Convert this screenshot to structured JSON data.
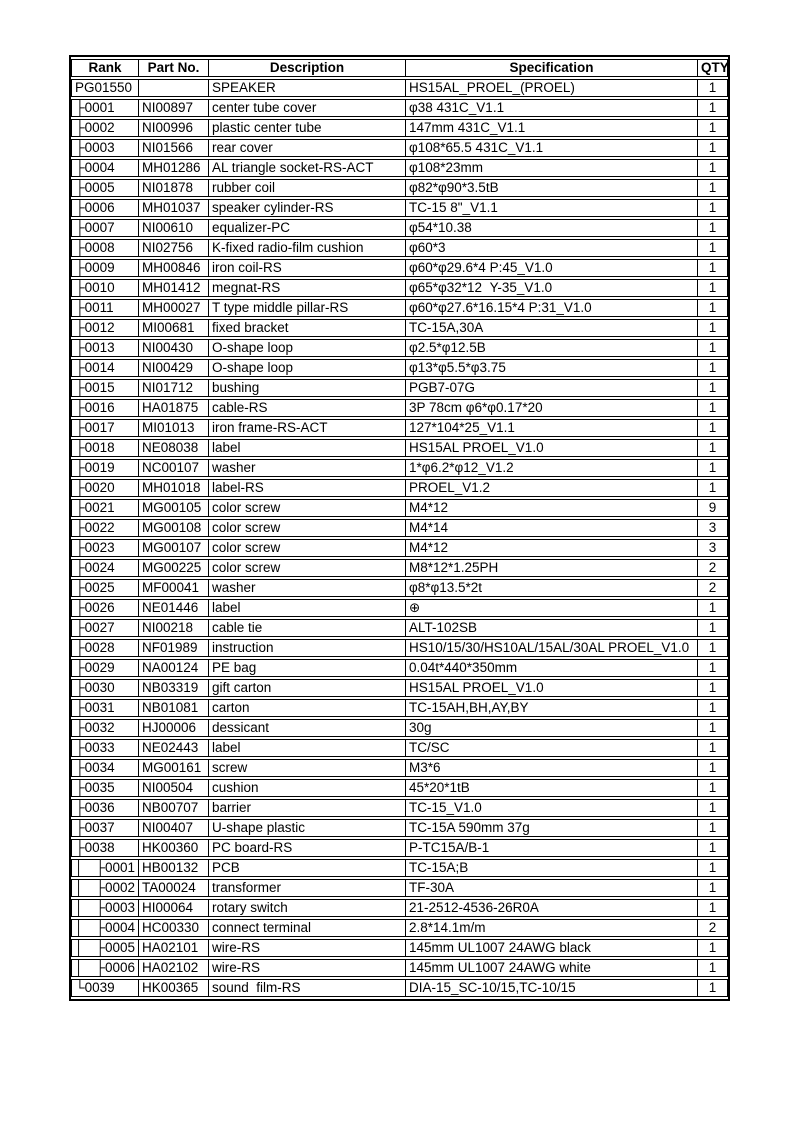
{
  "colors": {
    "background": "#ffffff",
    "border": "#000000",
    "text": "#000000"
  },
  "table": {
    "headers": [
      "Rank",
      "Part No.",
      "Description",
      "Specification",
      "QTY"
    ],
    "rows": [
      {
        "prefix": "",
        "rank": "PG01550",
        "part": "",
        "desc": "SPEAKER",
        "spec": "HS15AL_PROEL_(PROEL)",
        "qty": "1"
      },
      {
        "prefix": "",
        "rank": "├0001",
        "part": "NI00897",
        "desc": "center tube cover",
        "spec": "φ38 431C_V1.1",
        "qty": "1"
      },
      {
        "prefix": "",
        "rank": "├0002",
        "part": "NI00996",
        "desc": "plastic center tube",
        "spec": "147mm 431C_V1.1",
        "qty": "1"
      },
      {
        "prefix": "",
        "rank": "├0003",
        "part": "NI01566",
        "desc": "rear cover",
        "spec": "φ108*65.5 431C_V1.1",
        "qty": "1"
      },
      {
        "prefix": "",
        "rank": "├0004",
        "part": "MH01286",
        "desc": "AL triangle socket-RS-ACT",
        "spec": "φ108*23mm",
        "qty": "1"
      },
      {
        "prefix": "",
        "rank": "├0005",
        "part": "NI01878",
        "desc": "rubber coil",
        "spec": "φ82*φ90*3.5tB",
        "qty": "1"
      },
      {
        "prefix": "",
        "rank": "├0006",
        "part": "MH01037",
        "desc": "speaker cylinder-RS",
        "spec": "TC-15 8\"_V1.1",
        "qty": "1"
      },
      {
        "prefix": "",
        "rank": "├0007",
        "part": "NI00610",
        "desc": "equalizer-PC",
        "spec": "φ54*10.38",
        "qty": "1"
      },
      {
        "prefix": "",
        "rank": "├0008",
        "part": "NI02756",
        "desc": "K-fixed radio-film cushion",
        "spec": "φ60*3",
        "qty": "1"
      },
      {
        "prefix": "",
        "rank": "├0009",
        "part": "MH00846",
        "desc": "iron coil-RS",
        "spec": "φ60*φ29.6*4 P:45_V1.0",
        "qty": "1"
      },
      {
        "prefix": "",
        "rank": "├0010",
        "part": "MH01412",
        "desc": "megnat-RS",
        "spec": "φ65*φ32*12  Y-35_V1.0",
        "qty": "1"
      },
      {
        "prefix": "",
        "rank": "├0011",
        "part": "MH00027",
        "desc": "T type middle pillar-RS",
        "spec": "φ60*φ27.6*16.15*4 P:31_V1.0",
        "qty": "1"
      },
      {
        "prefix": "",
        "rank": "├0012",
        "part": "MI00681",
        "desc": "fixed bracket",
        "spec": "TC-15A,30A",
        "qty": "1"
      },
      {
        "prefix": "",
        "rank": "├0013",
        "part": "NI00430",
        "desc": "O-shape loop",
        "spec": "φ2.5*φ12.5B",
        "qty": "1"
      },
      {
        "prefix": "",
        "rank": "├0014",
        "part": "NI00429",
        "desc": "O-shape loop",
        "spec": "φ13*φ5.5*φ3.75",
        "qty": "1"
      },
      {
        "prefix": "",
        "rank": "├0015",
        "part": "NI01712",
        "desc": "bushing",
        "spec": "PGB7-07G",
        "qty": "1"
      },
      {
        "prefix": "",
        "rank": "├0016",
        "part": "HA01875",
        "desc": "cable-RS",
        "spec": "3P 78cm φ6*φ0.17*20",
        "qty": "1"
      },
      {
        "prefix": "",
        "rank": "├0017",
        "part": "MI01013",
        "desc": "iron frame-RS-ACT",
        "spec": "127*104*25_V1.1",
        "qty": "1"
      },
      {
        "prefix": "",
        "rank": "├0018",
        "part": "NE08038",
        "desc": "label",
        "spec": "HS15AL PROEL_V1.0",
        "qty": "1"
      },
      {
        "prefix": "",
        "rank": "├0019",
        "part": "NC00107",
        "desc": "washer",
        "spec": "1*φ6.2*φ12_V1.2",
        "qty": "1"
      },
      {
        "prefix": "",
        "rank": "├0020",
        "part": "MH01018",
        "desc": "label-RS",
        "spec": "PROEL_V1.2",
        "qty": "1"
      },
      {
        "prefix": "",
        "rank": "├0021",
        "part": "MG00105",
        "desc": "color screw",
        "spec": "M4*12",
        "qty": "9"
      },
      {
        "prefix": "",
        "rank": "├0022",
        "part": "MG00108",
        "desc": "color screw",
        "spec": "M4*14",
        "qty": "3"
      },
      {
        "prefix": "",
        "rank": "├0023",
        "part": "MG00107",
        "desc": "color screw",
        "spec": "M4*12",
        "qty": "3"
      },
      {
        "prefix": "",
        "rank": "├0024",
        "part": "MG00225",
        "desc": "color screw",
        "spec": "M8*12*1.25PH",
        "qty": "2"
      },
      {
        "prefix": "",
        "rank": "├0025",
        "part": "MF00041",
        "desc": "washer",
        "spec": "φ8*φ13.5*2t",
        "qty": "2"
      },
      {
        "prefix": "",
        "rank": "├0026",
        "part": "NE01446",
        "desc": "label",
        "spec": "⊕",
        "qty": "1"
      },
      {
        "prefix": "",
        "rank": "├0027",
        "part": "NI00218",
        "desc": "cable tie",
        "spec": "ALT-102SB",
        "qty": "1"
      },
      {
        "prefix": "",
        "rank": "├0028",
        "part": "NF01989",
        "desc": "instruction",
        "spec": "HS10/15/30/HS10AL/15AL/30AL PROEL_V1.0",
        "qty": "1"
      },
      {
        "prefix": "",
        "rank": "├0029",
        "part": "NA00124",
        "desc": "PE bag",
        "spec": "0.04t*440*350mm",
        "qty": "1"
      },
      {
        "prefix": "",
        "rank": "├0030",
        "part": "NB03319",
        "desc": "gift carton",
        "spec": "HS15AL PROEL_V1.0",
        "qty": "1"
      },
      {
        "prefix": "",
        "rank": "├0031",
        "part": "NB01081",
        "desc": "carton",
        "spec": "TC-15AH,BH,AY,BY",
        "qty": "1"
      },
      {
        "prefix": "",
        "rank": "├0032",
        "part": "HJ00006",
        "desc": "dessicant",
        "spec": "30g",
        "qty": "1"
      },
      {
        "prefix": "",
        "rank": "├0033",
        "part": "NE02443",
        "desc": "label",
        "spec": "TC/SC",
        "qty": "1"
      },
      {
        "prefix": "",
        "rank": "├0034",
        "part": "MG00161",
        "desc": "screw",
        "spec": "M3*6",
        "qty": "1"
      },
      {
        "prefix": "",
        "rank": "├0035",
        "part": "NI00504",
        "desc": "cushion",
        "spec": "45*20*1tB",
        "qty": "1"
      },
      {
        "prefix": "",
        "rank": "├0036",
        "part": "NB00707",
        "desc": "barrier",
        "spec": "TC-15_V1.0",
        "qty": "1"
      },
      {
        "prefix": "",
        "rank": "├0037",
        "part": "NI00407",
        "desc": "U-shape plastic",
        "spec": "TC-15A 590mm 37g",
        "qty": "1"
      },
      {
        "prefix": "",
        "rank": "├0038",
        "part": "HK00360",
        "desc": "PC board-RS",
        "spec": "P-TC15A/B-1",
        "qty": "1"
      },
      {
        "prefix": "│",
        "rank": "├0001",
        "part": "HB00132",
        "desc": "PCB",
        "spec": "TC-15A;B",
        "qty": "1"
      },
      {
        "prefix": "│",
        "rank": "├0002",
        "part": "TA00024",
        "desc": "transformer",
        "spec": "TF-30A",
        "qty": "1"
      },
      {
        "prefix": "│",
        "rank": "├0003",
        "part": "HI00064",
        "desc": "rotary switch",
        "spec": "21-2512-4536-26R0A",
        "qty": "1"
      },
      {
        "prefix": "│",
        "rank": "├0004",
        "part": "HC00330",
        "desc": "connect terminal",
        "spec": "2.8*14.1m/m",
        "qty": "2"
      },
      {
        "prefix": "│",
        "rank": "├0005",
        "part": "HA02101",
        "desc": "wire-RS",
        "spec": "145mm UL1007 24AWG black",
        "qty": "1"
      },
      {
        "prefix": "│",
        "rank": "├0006",
        "part": "HA02102",
        "desc": "wire-RS",
        "spec": "145mm UL1007 24AWG white",
        "qty": "1"
      },
      {
        "prefix": "",
        "rank": "└0039",
        "part": "HK00365",
        "desc": "sound  film-RS",
        "spec": "DIA-15_SC-10/15,TC-10/15",
        "qty": "1"
      }
    ]
  }
}
